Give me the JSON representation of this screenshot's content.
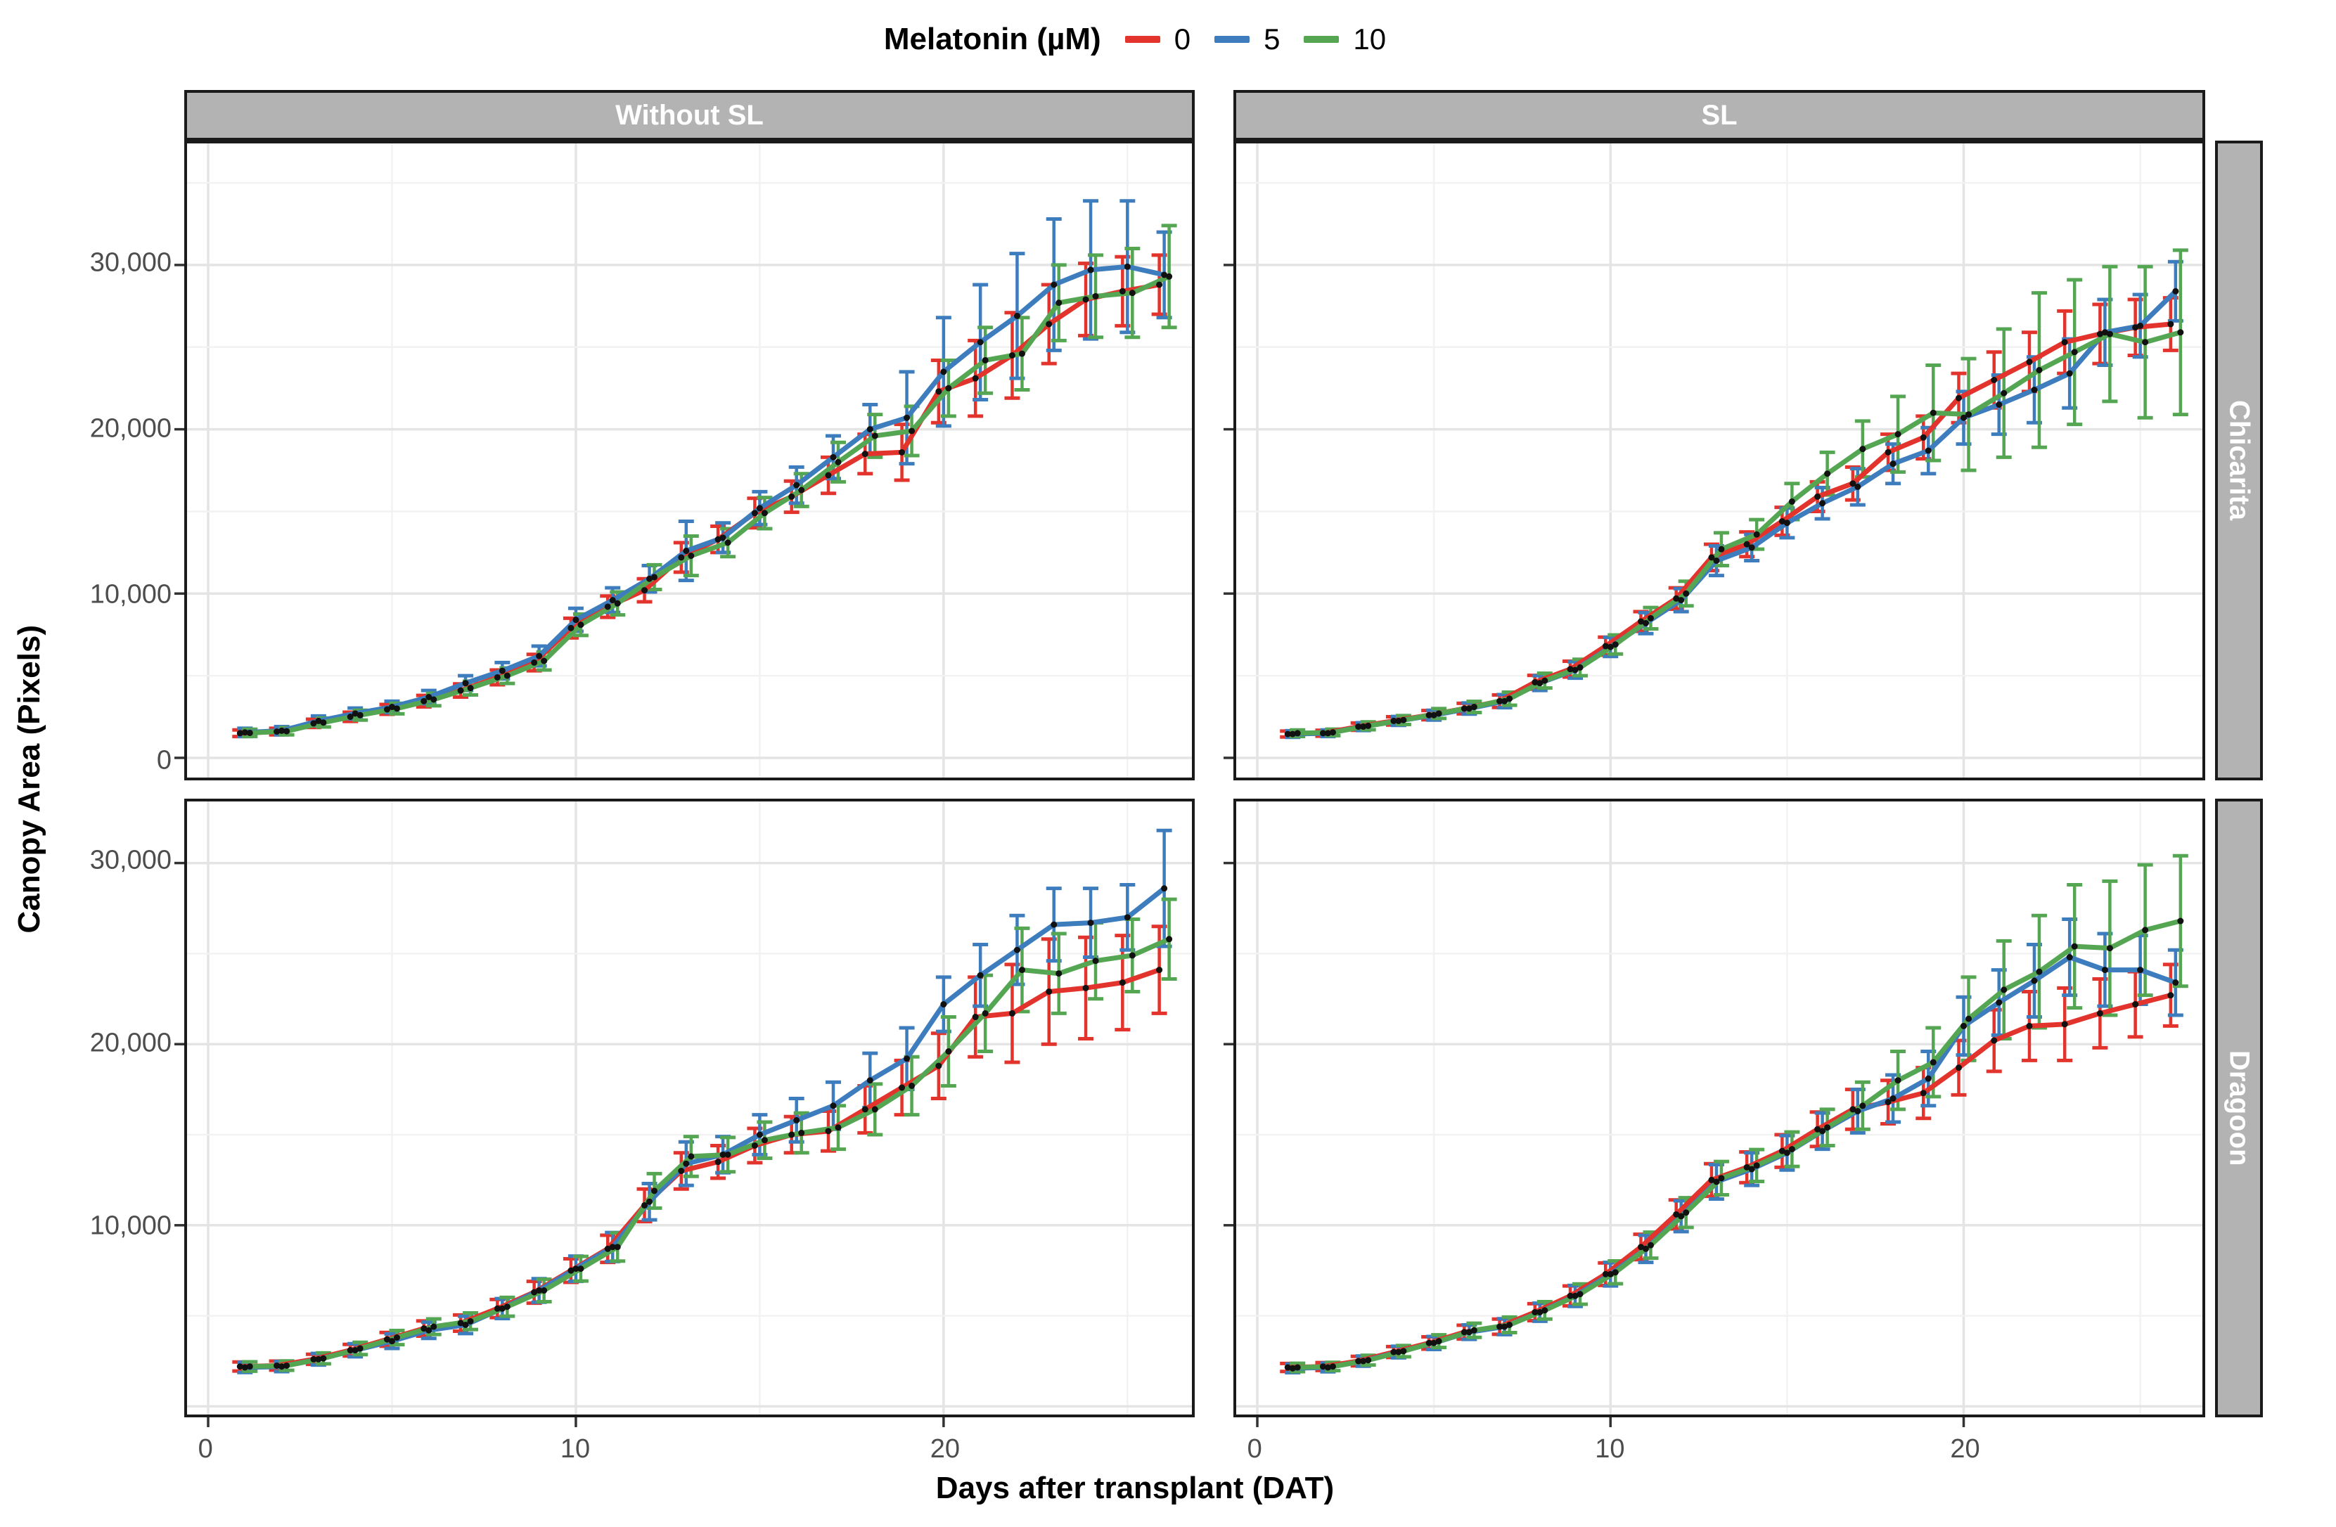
{
  "legend": {
    "title": "Melatonin (µM)",
    "items": [
      {
        "label": "0",
        "color": "#E2342C"
      },
      {
        "label": "5",
        "color": "#3D7DBE"
      },
      {
        "label": "10",
        "color": "#55A653"
      }
    ]
  },
  "facets": {
    "cols": [
      "Without SL",
      "SL"
    ],
    "rows": [
      "Chicarita",
      "Dragoon"
    ]
  },
  "axes": {
    "x_title": "Days after transplant (DAT)",
    "y_title": "Canopy Area (Pixels)",
    "x_ticks": [
      {
        "label": "0",
        "value": 0
      },
      {
        "label": "10",
        "value": 10
      },
      {
        "label": "20",
        "value": 20
      }
    ],
    "y_ticks_top": [
      {
        "label": "0",
        "value": 0
      },
      {
        "label": "10,000",
        "value": 10000
      },
      {
        "label": "20,000",
        "value": 20000
      },
      {
        "label": "30,000",
        "value": 30000
      }
    ],
    "y_ticks_bottom": [
      {
        "label": "10,000",
        "value": 10000
      },
      {
        "label": "20,000",
        "value": 20000
      },
      {
        "label": "30,000",
        "value": 30000
      }
    ]
  },
  "style": {
    "grid_major": "#E4E4E4",
    "grid_minor": "#F2F2F2",
    "tick": "#333333",
    "point": "#111111"
  },
  "chart_data": [
    {
      "type": "line",
      "facet_col": "Without SL",
      "facet_row": "Chicarita",
      "x": [
        1,
        2,
        3,
        4,
        5,
        6,
        7,
        8,
        9,
        10,
        11,
        12,
        13,
        14,
        15,
        16,
        17,
        18,
        19,
        20,
        21,
        22,
        23,
        24,
        25,
        26
      ],
      "series": [
        {
          "name": "0",
          "color": "#E2342C",
          "values": [
            1500,
            1600,
            2100,
            2500,
            2950,
            3450,
            4100,
            4900,
            5800,
            7900,
            9200,
            10200,
            12200,
            13300,
            14900,
            15900,
            17200,
            18500,
            18600,
            22300,
            23100,
            24500,
            26400,
            27900,
            28400,
            28800
          ],
          "err": [
            200,
            200,
            250,
            280,
            300,
            350,
            400,
            450,
            500,
            600,
            650,
            700,
            900,
            800,
            900,
            950,
            1100,
            1200,
            1700,
            1900,
            2300,
            2600,
            2400,
            2200,
            2100,
            1800
          ]
        },
        {
          "name": "5",
          "color": "#3D7DBE",
          "values": [
            1550,
            1650,
            2250,
            2700,
            3100,
            3700,
            4550,
            5300,
            6200,
            8400,
            9600,
            10900,
            12600,
            13400,
            15200,
            16600,
            18300,
            20000,
            20700,
            23500,
            25300,
            26900,
            28800,
            29700,
            29900,
            29400
          ],
          "err": [
            250,
            250,
            300,
            330,
            350,
            400,
            450,
            500,
            600,
            700,
            750,
            800,
            1800,
            900,
            1000,
            1100,
            1300,
            1500,
            2800,
            3300,
            3500,
            3800,
            4000,
            4200,
            4000,
            2600
          ]
        },
        {
          "name": "10",
          "color": "#55A653",
          "values": [
            1520,
            1620,
            2150,
            2600,
            3000,
            3550,
            4250,
            5000,
            5900,
            8100,
            9400,
            11000,
            12300,
            13100,
            14900,
            16300,
            18000,
            19600,
            19900,
            22500,
            24200,
            24600,
            27700,
            28100,
            28300,
            29300
          ],
          "err": [
            220,
            220,
            270,
            300,
            320,
            380,
            420,
            470,
            550,
            650,
            700,
            750,
            1200,
            850,
            950,
            1000,
            1200,
            1300,
            1500,
            1700,
            2000,
            2200,
            2300,
            2500,
            2700,
            3100
          ]
        }
      ]
    },
    {
      "type": "line",
      "facet_col": "SL",
      "facet_row": "Chicarita",
      "x": [
        1,
        2,
        3,
        4,
        5,
        6,
        7,
        8,
        9,
        10,
        11,
        12,
        13,
        14,
        15,
        16,
        17,
        18,
        19,
        20,
        21,
        22,
        23,
        24,
        25,
        26
      ],
      "series": [
        {
          "name": "0",
          "color": "#E2342C",
          "values": [
            1450,
            1500,
            1900,
            2250,
            2600,
            3000,
            3450,
            4600,
            5400,
            6800,
            8300,
            9700,
            12200,
            13000,
            14400,
            15900,
            16700,
            18600,
            19500,
            21900,
            23000,
            24100,
            25300,
            25800,
            26200,
            26400
          ],
          "err": [
            180,
            180,
            220,
            250,
            280,
            320,
            380,
            420,
            480,
            550,
            600,
            650,
            800,
            750,
            850,
            900,
            1000,
            1100,
            1300,
            1500,
            1700,
            1800,
            1900,
            1800,
            1700,
            1600
          ]
        },
        {
          "name": "5",
          "color": "#3D7DBE",
          "values": [
            1450,
            1500,
            1900,
            2250,
            2600,
            3000,
            3450,
            4550,
            5350,
            6750,
            8200,
            9600,
            12000,
            12800,
            14300,
            15500,
            16500,
            17900,
            18700,
            20700,
            21500,
            22400,
            23400,
            25900,
            26300,
            28400
          ],
          "err": [
            200,
            200,
            240,
            270,
            300,
            340,
            400,
            450,
            500,
            580,
            640,
            700,
            900,
            800,
            900,
            950,
            1100,
            1200,
            1400,
            1600,
            1800,
            2000,
            2100,
            2000,
            1900,
            1800
          ]
        },
        {
          "name": "10",
          "color": "#55A653",
          "values": [
            1500,
            1550,
            1950,
            2300,
            2700,
            3100,
            3600,
            4700,
            5500,
            6900,
            8500,
            10000,
            12700,
            13600,
            15600,
            17300,
            18800,
            19700,
            21000,
            20900,
            22200,
            23600,
            24700,
            25800,
            25300,
            25900
          ],
          "err": [
            200,
            200,
            240,
            270,
            300,
            340,
            400,
            450,
            500,
            580,
            650,
            750,
            1000,
            900,
            1100,
            1300,
            1700,
            2300,
            2900,
            3400,
            3900,
            4700,
            4400,
            4100,
            4600,
            5000
          ]
        }
      ]
    },
    {
      "type": "line",
      "facet_col": "Without SL",
      "facet_row": "Dragoon",
      "x": [
        1,
        2,
        3,
        4,
        5,
        6,
        7,
        8,
        9,
        10,
        11,
        12,
        13,
        14,
        15,
        16,
        17,
        18,
        19,
        20,
        21,
        22,
        23,
        24,
        25,
        26
      ],
      "series": [
        {
          "name": "0",
          "color": "#E2342C",
          "values": [
            2200,
            2250,
            2600,
            3100,
            3700,
            4300,
            4600,
            5400,
            6300,
            7500,
            8700,
            11100,
            13000,
            13500,
            14400,
            15000,
            15200,
            16400,
            17600,
            18800,
            21500,
            21700,
            22900,
            23100,
            23400,
            24100
          ],
          "err": [
            250,
            250,
            280,
            320,
            380,
            420,
            450,
            500,
            600,
            650,
            750,
            900,
            1000,
            900,
            950,
            1000,
            1100,
            1300,
            1500,
            1800,
            2200,
            2700,
            2900,
            2800,
            2600,
            2400
          ]
        },
        {
          "name": "5",
          "color": "#3D7DBE",
          "values": [
            2150,
            2200,
            2600,
            3100,
            3600,
            4200,
            4500,
            5400,
            6400,
            7600,
            8800,
            11300,
            13400,
            13900,
            15000,
            15800,
            16600,
            18000,
            19200,
            22200,
            23800,
            25200,
            26600,
            26700,
            27000,
            28600
          ],
          "err": [
            280,
            280,
            320,
            360,
            400,
            450,
            480,
            550,
            650,
            700,
            800,
            1000,
            1200,
            1000,
            1100,
            1200,
            1300,
            1500,
            1700,
            1500,
            1700,
            1900,
            2000,
            1900,
            1800,
            3200
          ]
        },
        {
          "name": "10",
          "color": "#55A653",
          "values": [
            2200,
            2250,
            2650,
            3200,
            3800,
            4400,
            4700,
            5500,
            6400,
            7600,
            8800,
            11900,
            13800,
            13900,
            14700,
            15100,
            15400,
            16400,
            17700,
            19600,
            21700,
            24100,
            23900,
            24600,
            24900,
            25800
          ],
          "err": [
            260,
            260,
            300,
            340,
            390,
            430,
            460,
            520,
            620,
            680,
            780,
            950,
            1100,
            950,
            1000,
            1100,
            1200,
            1400,
            1600,
            1900,
            2100,
            2300,
            2200,
            2100,
            2000,
            2200
          ]
        }
      ]
    },
    {
      "type": "line",
      "facet_col": "SL",
      "facet_row": "Dragoon",
      "x": [
        1,
        2,
        3,
        4,
        5,
        6,
        7,
        8,
        9,
        10,
        11,
        12,
        13,
        14,
        15,
        16,
        17,
        18,
        19,
        20,
        21,
        22,
        23,
        24,
        25,
        26
      ],
      "series": [
        {
          "name": "0",
          "color": "#E2342C",
          "values": [
            2150,
            2200,
            2500,
            3000,
            3500,
            4100,
            4400,
            5200,
            6100,
            7300,
            8800,
            10600,
            12500,
            13200,
            14100,
            15300,
            16400,
            16800,
            17300,
            18700,
            20200,
            21000,
            21100,
            21700,
            22200,
            22700
          ],
          "err": [
            220,
            220,
            260,
            300,
            340,
            380,
            420,
            470,
            550,
            620,
            700,
            800,
            900,
            850,
            900,
            950,
            1100,
            1200,
            1400,
            1500,
            1700,
            1900,
            2000,
            1900,
            1800,
            1700
          ]
        },
        {
          "name": "5",
          "color": "#3D7DBE",
          "values": [
            2100,
            2150,
            2500,
            3000,
            3500,
            4100,
            4400,
            5200,
            6100,
            7300,
            8700,
            10500,
            12400,
            13100,
            14000,
            15200,
            16300,
            17000,
            18100,
            21000,
            22300,
            23500,
            24800,
            24100,
            24100,
            23400
          ],
          "err": [
            240,
            240,
            280,
            320,
            360,
            400,
            440,
            500,
            580,
            650,
            750,
            850,
            950,
            900,
            950,
            1000,
            1200,
            1300,
            1500,
            1600,
            1800,
            2000,
            2100,
            2000,
            1900,
            1800
          ]
        },
        {
          "name": "10",
          "color": "#55A653",
          "values": [
            2150,
            2200,
            2550,
            3050,
            3600,
            4200,
            4500,
            5300,
            6200,
            7400,
            8900,
            10700,
            12600,
            13300,
            14200,
            15400,
            16600,
            18000,
            19000,
            21400,
            23000,
            24000,
            25400,
            25300,
            26300,
            26800
          ],
          "err": [
            230,
            230,
            270,
            310,
            350,
            390,
            430,
            480,
            560,
            630,
            720,
            820,
            920,
            880,
            950,
            1000,
            1300,
            1600,
            1900,
            2300,
            2700,
            3100,
            3400,
            3700,
            3600,
            3600
          ]
        }
      ]
    }
  ],
  "panel_scales": {
    "row_top": {
      "ymin": -1200,
      "ymax": 37400
    },
    "row_bottom": {
      "ymin": -450,
      "ymax": 33400
    },
    "xmax": 26.6
  }
}
